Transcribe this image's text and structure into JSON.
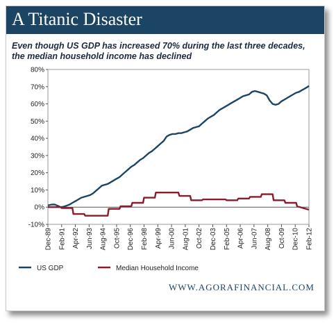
{
  "header": {
    "title": "A Titanic Disaster"
  },
  "subtitle": {
    "line1": "Even though US GDP has increased 70% during the last three decades,",
    "line2": "the median household income has declined"
  },
  "footer": {
    "url": "WWW.AGORAFINANCIAL.COM"
  },
  "colors": {
    "header_bg": "#1c4563",
    "gdp": "#1c4563",
    "income": "#8b1a2b"
  },
  "chart_data": {
    "type": "line",
    "title": "",
    "xlabel": "",
    "ylabel": "",
    "ylim": [
      -10,
      80
    ],
    "xlim": [
      1989.917,
      2012.083
    ],
    "y_ticks": [
      "80%",
      "70%",
      "60%",
      "50%",
      "40%",
      "30%",
      "20%",
      "10%",
      "0%",
      "-10%"
    ],
    "x_ticks": [
      {
        "label": "Dec-89",
        "x": 1989.917
      },
      {
        "label": "Feb-91",
        "x": 1991.083
      },
      {
        "label": "Apr-92",
        "x": 1992.25
      },
      {
        "label": "Jun-93",
        "x": 1993.417
      },
      {
        "label": "Aug-94",
        "x": 1994.583
      },
      {
        "label": "Oct-95",
        "x": 1995.75
      },
      {
        "label": "Dec-96",
        "x": 1996.917
      },
      {
        "label": "Feb-98",
        "x": 1998.083
      },
      {
        "label": "Apr-99",
        "x": 1999.25
      },
      {
        "label": "Jun-00",
        "x": 2000.417
      },
      {
        "label": "Aug-01",
        "x": 2001.583
      },
      {
        "label": "Oct-02",
        "x": 2002.75
      },
      {
        "label": "Dec-03",
        "x": 2003.917
      },
      {
        "label": "Feb-05",
        "x": 2005.083
      },
      {
        "label": "Apr-06",
        "x": 2006.25
      },
      {
        "label": "Jun-07",
        "x": 2007.417
      },
      {
        "label": "Aug-08",
        "x": 2008.583
      },
      {
        "label": "Oct-09",
        "x": 2009.75
      },
      {
        "label": "Dec-10",
        "x": 2010.917
      },
      {
        "label": "Feb-12",
        "x": 2012.083
      }
    ],
    "grid": false,
    "legend_position": "bottom-left",
    "series": [
      {
        "name": "US GDP",
        "x": [
          1989.917,
          1990.25,
          1990.5,
          1990.75,
          1991.0,
          1991.25,
          1991.5,
          1991.75,
          1992.0,
          1992.25,
          1992.5,
          1992.75,
          1993.0,
          1993.25,
          1993.5,
          1993.75,
          1994.0,
          1994.25,
          1994.5,
          1994.75,
          1995.0,
          1995.25,
          1995.5,
          1995.75,
          1996.0,
          1996.25,
          1996.5,
          1996.75,
          1997.0,
          1997.25,
          1997.5,
          1997.75,
          1998.0,
          1998.25,
          1998.5,
          1998.75,
          1999.0,
          1999.25,
          1999.5,
          1999.75,
          2000.0,
          2000.25,
          2000.5,
          2000.75,
          2001.0,
          2001.25,
          2001.5,
          2001.75,
          2002.0,
          2002.25,
          2002.5,
          2002.75,
          2003.0,
          2003.25,
          2003.5,
          2003.75,
          2004.0,
          2004.25,
          2004.5,
          2004.75,
          2005.0,
          2005.25,
          2005.5,
          2005.75,
          2006.0,
          2006.25,
          2006.5,
          2006.75,
          2007.0,
          2007.25,
          2007.5,
          2007.75,
          2008.0,
          2008.25,
          2008.5,
          2008.75,
          2009.0,
          2009.25,
          2009.5,
          2009.75,
          2010.0,
          2010.25,
          2010.5,
          2010.75,
          2011.0,
          2011.25,
          2011.5,
          2011.75,
          2012.0,
          2012.083
        ],
        "values": [
          1.0,
          1.5,
          1.5,
          0.8,
          0.0,
          0.3,
          0.8,
          1.5,
          2.5,
          3.5,
          4.5,
          5.5,
          6.0,
          6.5,
          7.0,
          8.0,
          9.5,
          11.0,
          12.5,
          13.0,
          13.5,
          14.5,
          15.5,
          16.5,
          17.5,
          19.0,
          20.5,
          22.0,
          23.5,
          24.5,
          26.0,
          27.5,
          28.5,
          30.0,
          31.5,
          32.5,
          34.0,
          35.5,
          37.0,
          38.5,
          41.0,
          42.0,
          42.5,
          42.5,
          43.0,
          43.0,
          43.5,
          44.0,
          45.0,
          46.0,
          46.5,
          47.0,
          48.5,
          50.0,
          51.5,
          52.5,
          53.5,
          55.0,
          56.5,
          57.5,
          58.5,
          59.5,
          60.5,
          61.5,
          62.5,
          63.5,
          64.5,
          65.0,
          65.5,
          67.0,
          67.5,
          67.0,
          66.5,
          66.0,
          65.0,
          62.0,
          60.0,
          59.5,
          60.0,
          61.5,
          62.5,
          63.5,
          64.5,
          65.5,
          66.5,
          67.0,
          68.0,
          69.0,
          70.0,
          70.5
        ]
      },
      {
        "name": "Median Household Income",
        "x": [
          1989.917,
          1991.0,
          1991.083,
          1992.0,
          1992.083,
          1993.0,
          1993.083,
          1994.0,
          1994.083,
          1995.0,
          1995.083,
          1996.0,
          1996.083,
          1997.0,
          1997.083,
          1998.0,
          1998.083,
          1999.0,
          1999.083,
          2000.0,
          2000.083,
          2001.0,
          2001.083,
          2002.0,
          2002.083,
          2003.0,
          2003.083,
          2004.0,
          2004.083,
          2005.0,
          2005.083,
          2006.0,
          2006.083,
          2007.0,
          2007.083,
          2008.0,
          2008.083,
          2009.0,
          2009.083,
          2010.0,
          2010.083,
          2011.0,
          2011.083,
          2012.083
        ],
        "values": [
          0.0,
          0.0,
          -0.5,
          -0.5,
          -4.0,
          -4.0,
          -5.0,
          -5.0,
          -5.0,
          -5.0,
          -1.0,
          -1.0,
          0.5,
          0.5,
          2.5,
          2.5,
          5.5,
          5.5,
          8.5,
          8.5,
          8.5,
          8.5,
          6.5,
          6.5,
          4.0,
          4.0,
          4.5,
          4.5,
          4.5,
          4.5,
          4.0,
          4.0,
          5.0,
          5.0,
          6.0,
          6.0,
          7.5,
          7.5,
          4.0,
          4.0,
          2.5,
          2.5,
          0.5,
          -1.5
        ]
      }
    ]
  }
}
